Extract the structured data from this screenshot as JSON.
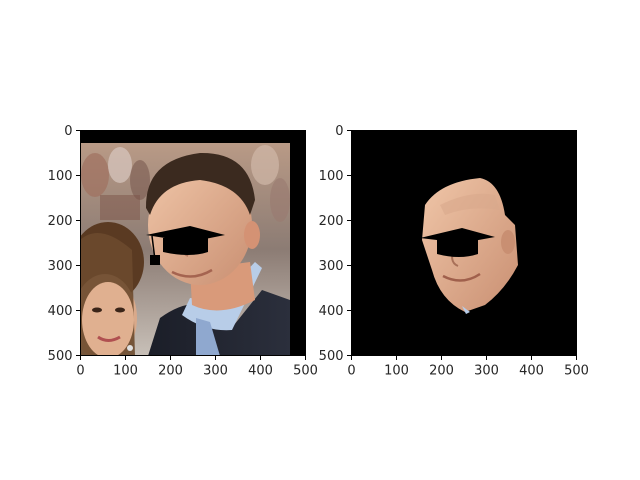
{
  "figure": {
    "background": "#ffffff",
    "axes_color": "#000000",
    "tick_label_color": "#262626"
  },
  "chart_data": [
    {
      "type": "image",
      "title": "",
      "xlabel": "",
      "ylabel": "",
      "xlim": [
        0,
        500
      ],
      "ylim": [
        500,
        0
      ],
      "xticks": [
        0,
        100,
        200,
        300,
        400,
        500
      ],
      "yticks": [
        0,
        100,
        200,
        300,
        400,
        500
      ],
      "grid": false,
      "image_content": "photo of a man in a suit with a woman at left; a black graduation-cap shape over the eyes",
      "overlay": "graduation-cap"
    },
    {
      "type": "image",
      "title": "",
      "xlabel": "",
      "ylabel": "",
      "xlim": [
        0,
        500
      ],
      "ylim": [
        500,
        0
      ],
      "xticks": [
        0,
        100,
        200,
        300,
        400,
        500
      ],
      "yticks": [
        0,
        100,
        200,
        300,
        400,
        500
      ],
      "grid": false,
      "image_content": "segmented face of the man on a black background; graduation-cap shape over the eyes",
      "overlay": "graduation-cap"
    }
  ]
}
